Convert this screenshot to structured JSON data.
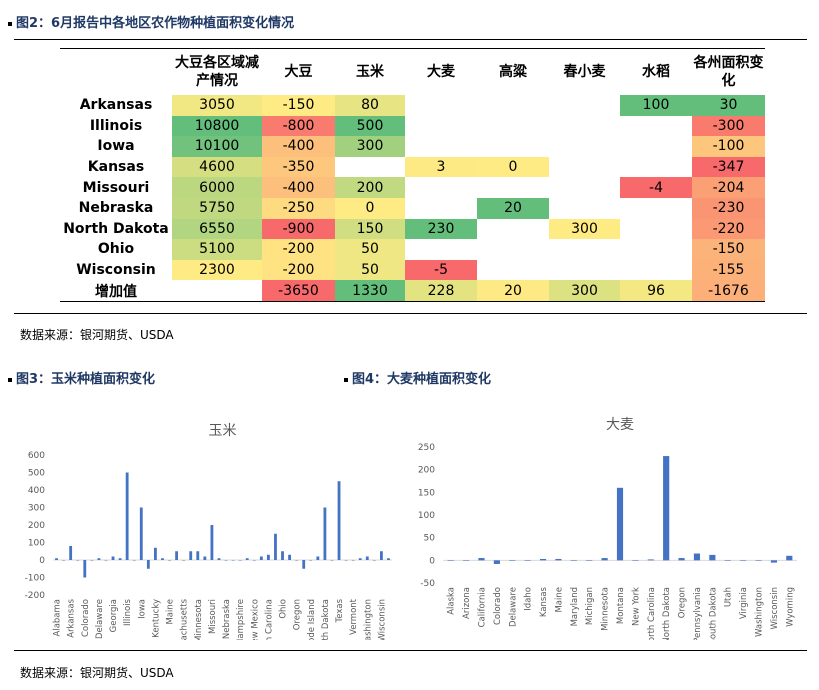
{
  "figure2_title": "图2：6月报告中各地区农作物种植面积变化情况",
  "table": {
    "header": [
      "大豆各区域减产情况",
      "大豆",
      "玉米",
      "大麦",
      "高粱",
      "春小麦",
      "水稻",
      "各州面积变化"
    ],
    "rows": [
      {
        "label": "Arkansas",
        "cells": [
          3050,
          -150,
          80,
          null,
          null,
          null,
          100,
          30
        ]
      },
      {
        "label": "Illinois",
        "cells": [
          10800,
          -800,
          500,
          null,
          null,
          null,
          null,
          -300
        ]
      },
      {
        "label": "Iowa",
        "cells": [
          10100,
          -400,
          300,
          null,
          null,
          null,
          null,
          -100
        ]
      },
      {
        "label": "Kansas",
        "cells": [
          4600,
          -350,
          null,
          3,
          0,
          null,
          null,
          -347
        ]
      },
      {
        "label": "Missouri",
        "cells": [
          6000,
          -400,
          200,
          null,
          null,
          null,
          -4,
          -204
        ]
      },
      {
        "label": "Nebraska",
        "cells": [
          5750,
          -250,
          0,
          null,
          20,
          null,
          null,
          -230
        ]
      },
      {
        "label": "North Dakota",
        "cells": [
          6550,
          -900,
          150,
          230,
          null,
          300,
          null,
          -220
        ]
      },
      {
        "label": "Ohio",
        "cells": [
          5100,
          -200,
          50,
          null,
          null,
          null,
          null,
          -150
        ]
      },
      {
        "label": "Wisconsin",
        "cells": [
          2300,
          -200,
          50,
          -5,
          null,
          null,
          null,
          -155
        ]
      },
      {
        "label": "增加值",
        "cells": [
          null,
          -3650,
          1330,
          228,
          20,
          300,
          96,
          -1676
        ]
      }
    ]
  },
  "table_source": "数据来源：银河期货、USDA",
  "figure3_title": "图3：玉米种植面积变化",
  "figure4_title": "图4：大麦种植面积变化",
  "chart_data": [
    {
      "type": "bar",
      "title": "玉米",
      "color": "#4472c4",
      "ylim": [
        -200,
        600
      ],
      "yticks": [
        -200,
        -100,
        0,
        100,
        200,
        300,
        400,
        500,
        600
      ],
      "categories": [
        "Alabama",
        null,
        "Arkansas",
        null,
        "Colorado",
        null,
        "Delaware",
        null,
        "Georgia",
        null,
        "Illinois",
        null,
        "Iowa",
        null,
        "Kentucky",
        null,
        "Maine",
        null,
        "Massachusetts",
        null,
        "Minnesota",
        null,
        "Missouri",
        null,
        "Nebraska",
        null,
        "New Hampshire",
        null,
        "New Mexico",
        null,
        "North Carolina",
        null,
        "Ohio",
        null,
        "Oregon",
        null,
        "Rhode Island",
        null,
        "South Dakota",
        null,
        "Texas",
        null,
        "Vermont",
        null,
        "Washington",
        null,
        "Wisconsin",
        null
      ],
      "values": [
        10,
        0,
        80,
        0,
        -100,
        0,
        10,
        0,
        20,
        10,
        500,
        0,
        300,
        -50,
        70,
        10,
        0,
        50,
        0,
        50,
        50,
        20,
        200,
        10,
        0,
        0,
        0,
        10,
        0,
        20,
        30,
        150,
        50,
        30,
        0,
        -50,
        0,
        20,
        300,
        0,
        450,
        0,
        0,
        10,
        20,
        0,
        50,
        10
      ]
    },
    {
      "type": "bar",
      "title": "大麦",
      "color": "#4472c4",
      "ylim": [
        -50,
        250
      ],
      "yticks": [
        -50,
        0,
        50,
        100,
        150,
        200,
        250
      ],
      "categories": [
        "Alaska",
        "Arizona",
        "California",
        "Colorado",
        "Delaware",
        "Idaho",
        "Kansas",
        "Maine",
        "Maryland",
        "Michigan",
        "Minnesota",
        "Montana",
        "New York",
        "North Carolina",
        "North Dakota",
        "Oregon",
        "Pennsylvania",
        "South Dakota",
        "Utah",
        "Virginia",
        "Washington",
        "Wisconsin",
        "Wyoming"
      ],
      "values": [
        0,
        0,
        5,
        -8,
        0,
        0,
        3,
        3,
        0,
        0,
        5,
        160,
        0,
        2,
        230,
        5,
        15,
        12,
        0,
        0,
        0,
        -5,
        10
      ]
    }
  ],
  "chart_source": "数据来源：银河期货、USDA"
}
